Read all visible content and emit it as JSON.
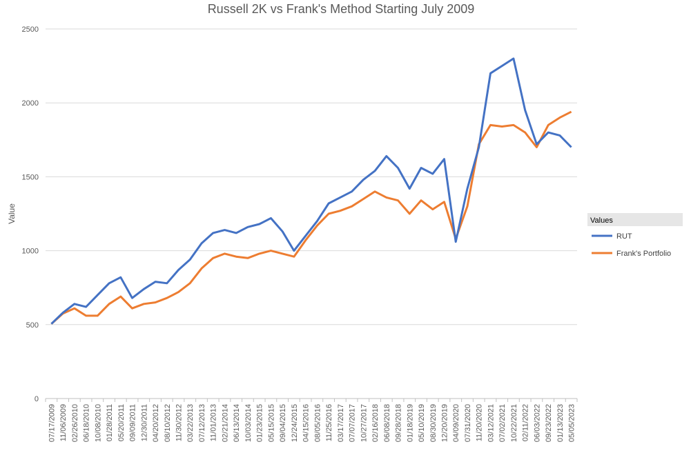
{
  "chart_data": {
    "type": "line",
    "title": "Russell 2K vs Frank's Method Starting July 2009",
    "ylabel": "Value",
    "xlabel": "",
    "ylim": [
      0,
      2500
    ],
    "yticks": [
      0,
      500,
      1000,
      1500,
      2000,
      2500
    ],
    "grid": true,
    "legend_title": "Values",
    "legend_position": "right",
    "categories": [
      "07/17/2009",
      "11/06/2009",
      "02/26/2010",
      "06/18/2010",
      "10/08/2010",
      "01/28/2011",
      "05/20/2011",
      "09/09/2011",
      "12/30/2011",
      "04/20/2012",
      "08/10/2012",
      "11/30/2012",
      "03/22/2013",
      "07/12/2013",
      "11/01/2013",
      "02/21/2014",
      "06/13/2014",
      "10/03/2014",
      "01/23/2015",
      "05/15/2015",
      "09/04/2015",
      "12/24/2015",
      "04/15/2016",
      "08/05/2016",
      "11/25/2016",
      "03/17/2017",
      "07/07/2017",
      "10/27/2017",
      "02/16/2018",
      "06/08/2018",
      "09/28/2018",
      "01/18/2019",
      "05/10/2019",
      "08/30/2019",
      "12/20/2019",
      "04/09/2020",
      "07/31/2020",
      "11/20/2020",
      "03/12/2021",
      "07/02/2021",
      "10/22/2021",
      "02/11/2022",
      "06/03/2022",
      "09/23/2022",
      "01/13/2023",
      "05/05/2023"
    ],
    "series": [
      {
        "name": "RUT",
        "color": "#4472C4",
        "values": [
          505,
          580,
          640,
          620,
          700,
          780,
          820,
          680,
          740,
          790,
          780,
          870,
          940,
          1050,
          1120,
          1140,
          1120,
          1160,
          1180,
          1220,
          1130,
          1000,
          1100,
          1200,
          1320,
          1360,
          1400,
          1480,
          1540,
          1640,
          1560,
          1420,
          1560,
          1520,
          1620,
          1060,
          1420,
          1700,
          2200,
          2250,
          2300,
          1950,
          1720,
          1800,
          1780,
          1700
        ]
      },
      {
        "name": "Frank's Portfolio",
        "color": "#ED7D31",
        "values": [
          505,
          575,
          610,
          560,
          560,
          640,
          690,
          610,
          640,
          650,
          680,
          720,
          780,
          880,
          950,
          980,
          960,
          950,
          980,
          1000,
          980,
          960,
          1070,
          1170,
          1250,
          1270,
          1300,
          1350,
          1400,
          1360,
          1340,
          1250,
          1340,
          1280,
          1330,
          1080,
          1300,
          1720,
          1850,
          1840,
          1850,
          1800,
          1700,
          1850,
          1900,
          1940
        ]
      }
    ]
  }
}
